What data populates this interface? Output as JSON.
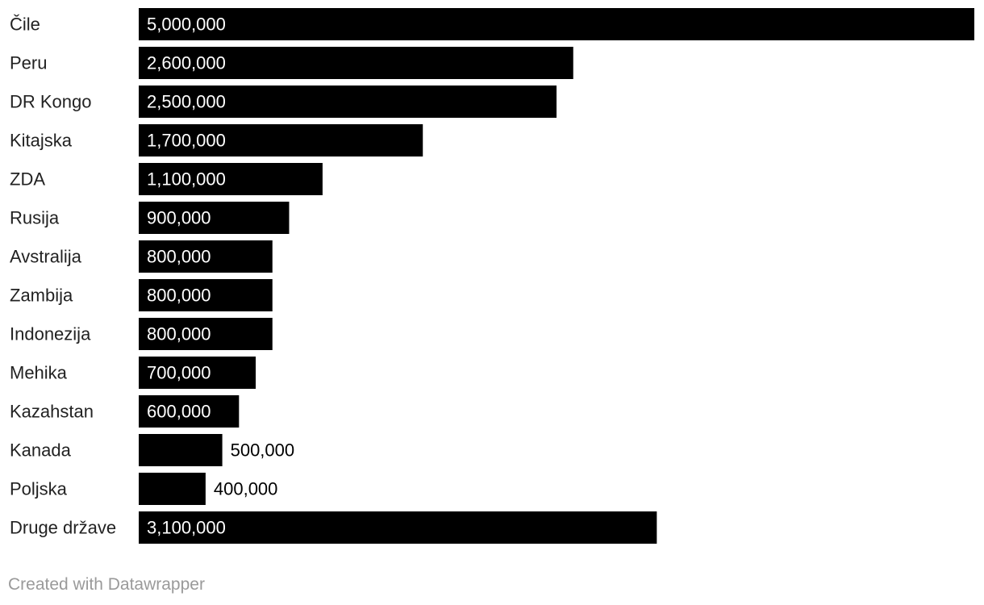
{
  "chart_data": {
    "type": "bar",
    "orientation": "horizontal",
    "categories": [
      "Čile",
      "Peru",
      "DR Kongo",
      "Kitajska",
      "ZDA",
      "Rusija",
      "Avstralija",
      "Zambija",
      "Indonezija",
      "Mehika",
      "Kazahstan",
      "Kanada",
      "Poljska",
      "Druge države"
    ],
    "values": [
      5000000,
      2600000,
      2500000,
      1700000,
      1100000,
      900000,
      800000,
      800000,
      800000,
      700000,
      600000,
      500000,
      400000,
      3100000
    ],
    "value_labels": [
      "5,000,000",
      "2,600,000",
      "2,500,000",
      "1,700,000",
      "1,100,000",
      "900,000",
      "800,000",
      "800,000",
      "800,000",
      "700,000",
      "600,000",
      "500,000",
      "400,000",
      "3,100,000"
    ],
    "xlim": [
      0,
      5000000
    ],
    "grid": false,
    "bar_color": "#000000",
    "label_inside_color": "#ffffff",
    "label_outside_color": "#000000"
  },
  "footer": {
    "credit": "Created with Datawrapper"
  }
}
